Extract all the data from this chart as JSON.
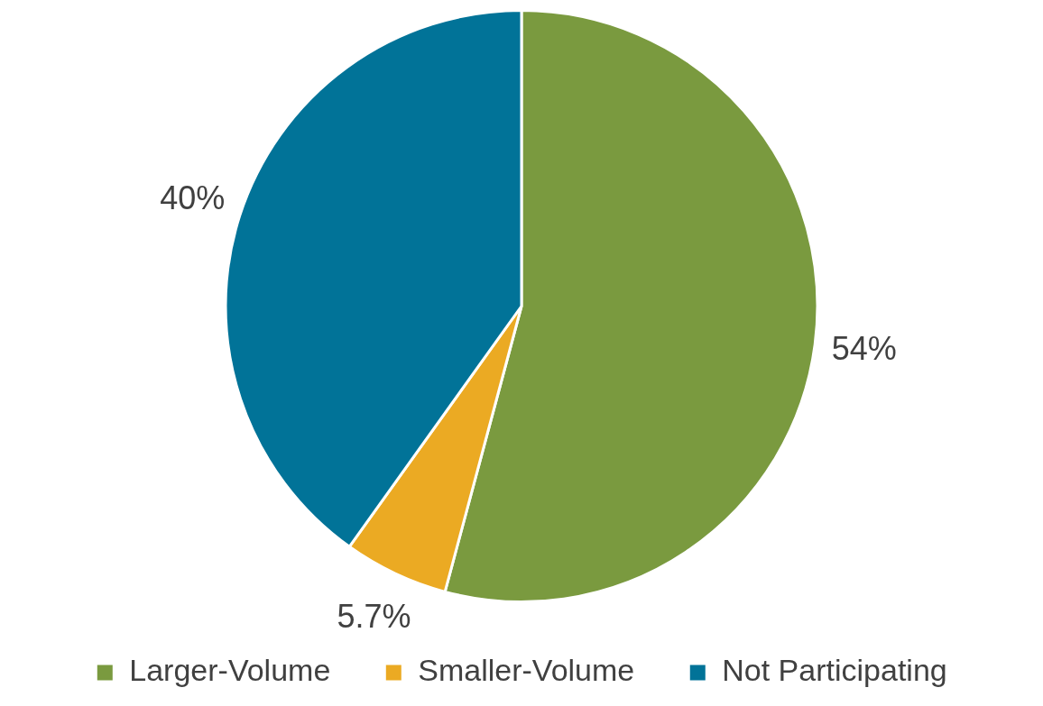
{
  "chart_data": {
    "type": "pie",
    "categories": [
      "Larger-Volume",
      "Smaller-Volume",
      "Not Participating"
    ],
    "values": [
      54,
      5.7,
      40
    ],
    "colors": [
      "#7a9a3f",
      "#ebaa23",
      "#017398"
    ],
    "value_labels": [
      "54%",
      "5.7%",
      "40%"
    ],
    "legend": "bottom"
  }
}
